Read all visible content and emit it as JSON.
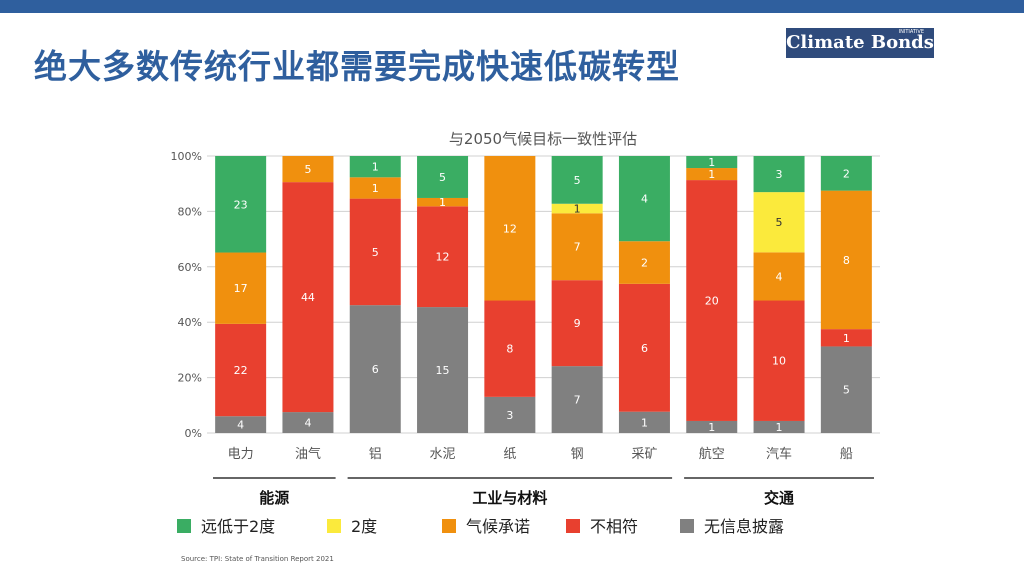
{
  "header": {
    "title": "绝大多数传统行业都需要完成快速低碳转型",
    "logo_text": "Climate Bonds",
    "logo_small": "INITIATIVE"
  },
  "chart_data": {
    "type": "bar",
    "stacked": true,
    "percent_normalized": true,
    "title": "与2050气候目标一致性评估",
    "xlabel": "",
    "ylabel": "",
    "ylim": [
      0,
      100
    ],
    "yticks": [
      "0%",
      "20%",
      "40%",
      "60%",
      "80%",
      "100%"
    ],
    "categories": [
      "电力",
      "油气",
      "铝",
      "水泥",
      "纸",
      "钢",
      "采矿",
      "航空",
      "汽车",
      "船"
    ],
    "series": [
      {
        "name": "无信息披露",
        "color": "#808080",
        "values": [
          4,
          4,
          6,
          15,
          3,
          7,
          1,
          1,
          1,
          5
        ]
      },
      {
        "name": "不相符",
        "color": "#e8402f",
        "values": [
          22,
          44,
          5,
          12,
          8,
          9,
          6,
          20,
          10,
          1
        ]
      },
      {
        "name": "气候承诺",
        "color": "#f0900e",
        "values": [
          17,
          5,
          1,
          1,
          12,
          7,
          2,
          1,
          4,
          8
        ]
      },
      {
        "name": "2度",
        "color": "#fbea3c",
        "values": [
          0,
          0,
          0,
          0,
          0,
          1,
          0,
          0,
          5,
          0
        ]
      },
      {
        "name": "远低于2度",
        "color": "#3aad63",
        "values": [
          23,
          0,
          1,
          5,
          0,
          5,
          4,
          1,
          3,
          2
        ]
      }
    ],
    "groups": [
      {
        "label": "能源",
        "categories": [
          "电力",
          "油气"
        ]
      },
      {
        "label": "工业与材料",
        "categories": [
          "铝",
          "水泥",
          "纸",
          "钢",
          "采矿"
        ]
      },
      {
        "label": "交通",
        "categories": [
          "航空",
          "汽车",
          "船"
        ]
      }
    ],
    "legend": [
      {
        "label": "远低于2度",
        "color": "#3aad63"
      },
      {
        "label": "2度",
        "color": "#fbea3c"
      },
      {
        "label": "气候承诺",
        "color": "#f0900e"
      },
      {
        "label": "不相符",
        "color": "#e8402f"
      },
      {
        "label": "无信息披露",
        "color": "#808080"
      }
    ],
    "legend_position": "bottom",
    "source": "Source: TPI: State of Transition Report 2021"
  }
}
